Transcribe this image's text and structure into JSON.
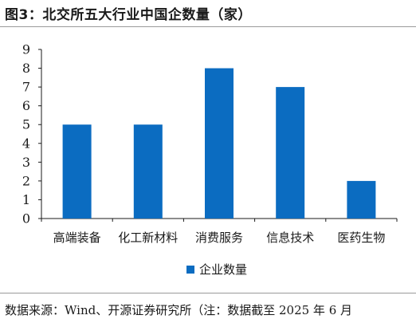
{
  "title": "图3：北交所五大行业中国企数量（家）",
  "source": "数据来源：Wind、开源证券研究所（注：数据截至 2025 年 6 月",
  "colors": {
    "bar": "#0b6cc1",
    "axis": "#1a1a1a"
  },
  "chart_data": {
    "type": "bar",
    "categories": [
      "高端装备",
      "化工新材料",
      "消费服务",
      "信息技术",
      "医药生物"
    ],
    "series": [
      {
        "name": "企业数量",
        "values": [
          5,
          5,
          8,
          7,
          2
        ]
      }
    ],
    "yticks": [
      "0",
      "1",
      "2",
      "3",
      "4",
      "5",
      "6",
      "7",
      "8",
      "9"
    ],
    "ylim": [
      0,
      9
    ],
    "grid": false,
    "legend": "bottom-center"
  }
}
